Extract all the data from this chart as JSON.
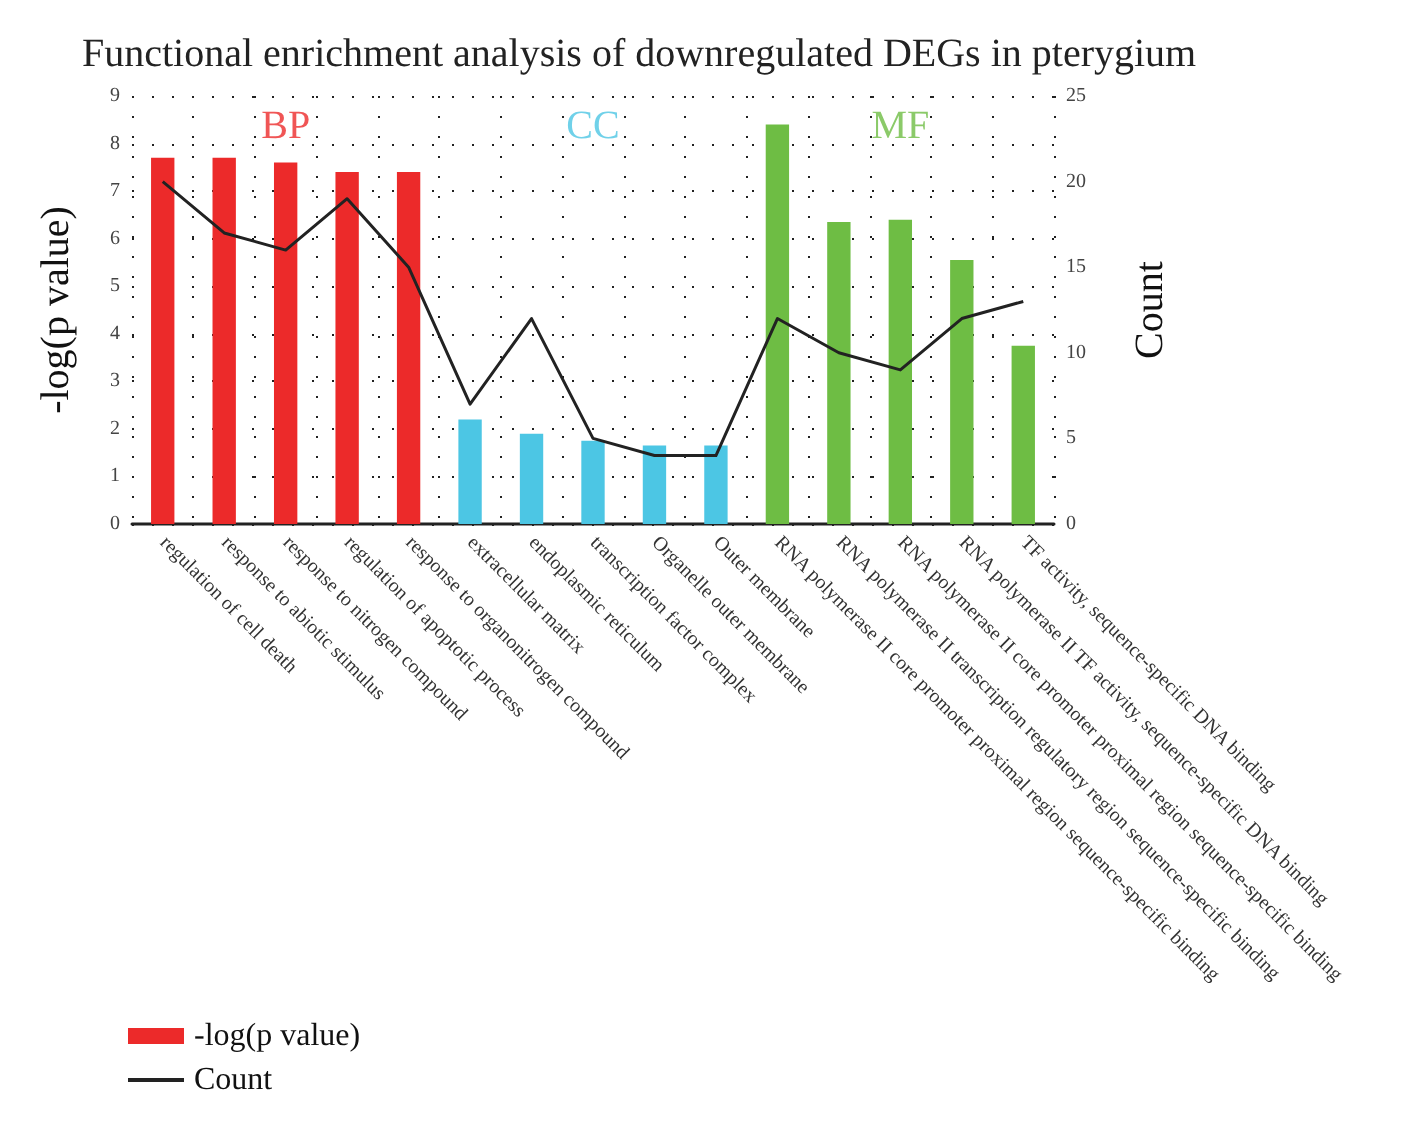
{
  "chart_data": {
    "type": "bar",
    "title": "Functional enrichment analysis of downregulated DEGs in pterygium",
    "ylabel": "-log(p value)",
    "y2label": "Count",
    "categories": [
      "regulation of cell death",
      "response to abiotic stimulus",
      "response to nitrogen compound",
      "regulation of apoptotic process",
      "response to organonitrogen compound",
      "extracellular matrix",
      "endoplasmic reticulum",
      "transcription factor complex",
      "Organelle outer membrane",
      "Outer membrane",
      "RNA polymerase II core promoter proximal region sequence-specific binding",
      "RNA polymerase II transcription regulatory region sequence-specific binding",
      "RNA polymerase II core promoter proximal region sequence-specific binding",
      "RNA polymerase II TF activity, sequence-specific DNA binding",
      "TF activity, sequence-specific DNA binding"
    ],
    "series": [
      {
        "name": "-log(p value)",
        "color": "#ec2a2a",
        "values": [
          7.7,
          7.7,
          7.6,
          7.4,
          7.4,
          2.2,
          1.9,
          1.75,
          1.65,
          1.65,
          8.4,
          6.35,
          6.4,
          5.55,
          3.75
        ],
        "colors": [
          "#ec2a2a",
          "#ec2a2a",
          "#ec2a2a",
          "#ec2a2a",
          "#ec2a2a",
          "#4cc6e4",
          "#4cc6e4",
          "#4cc6e4",
          "#4cc6e4",
          "#4cc6e4",
          "#6ebd44",
          "#6ebd44",
          "#6ebd44",
          "#6ebd44",
          "#6ebd44"
        ]
      },
      {
        "name": "Count",
        "type": "line",
        "axis": "y2",
        "color": "#222222",
        "values": [
          20,
          17,
          16,
          19,
          15,
          7,
          12,
          5,
          4,
          4,
          12,
          10,
          9,
          12,
          13
        ]
      }
    ],
    "annotations": [
      "BP",
      "CC",
      "MF"
    ],
    "ylim": [
      0,
      9
    ],
    "yticks": [
      0,
      1,
      2,
      3,
      4,
      5,
      6,
      7,
      8,
      9
    ],
    "y2lim": [
      0,
      25
    ],
    "y2ticks": [
      0,
      5,
      10,
      15,
      20,
      25
    ],
    "grid": true,
    "legend": "bottom left",
    "marker": "none",
    "line_style": "solid"
  }
}
